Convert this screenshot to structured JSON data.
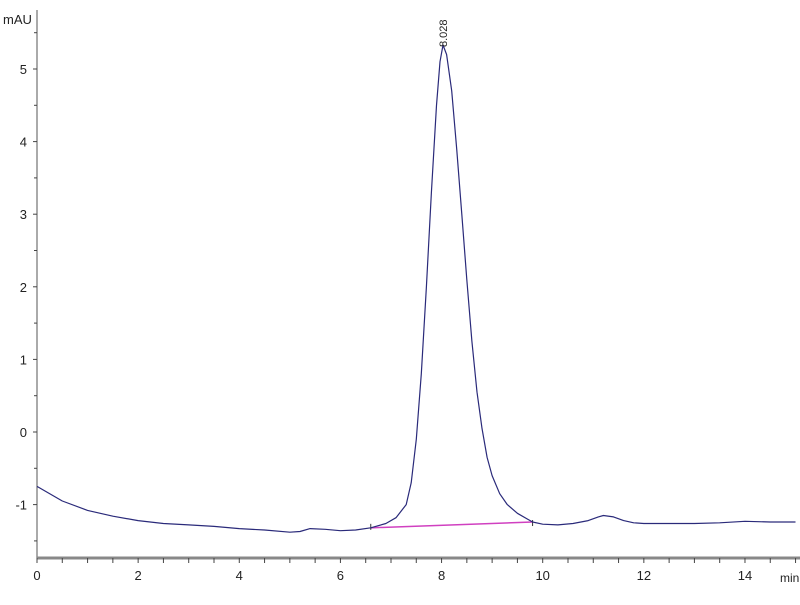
{
  "chart_data": {
    "type": "line",
    "title": "",
    "xlabel": "min",
    "ylabel": "mAU",
    "xlim": [
      0,
      15
    ],
    "ylim": [
      -1.74,
      5.8
    ],
    "x_ticks": [
      0,
      2,
      4,
      6,
      8,
      10,
      12,
      14
    ],
    "x_tick_labels": [
      "0",
      "2",
      "4",
      "6",
      "8",
      "10",
      "12",
      "14"
    ],
    "y_ticks": [
      -1,
      0,
      1,
      2,
      3,
      4,
      5
    ],
    "y_tick_labels": [
      "-1",
      "0",
      "1",
      "2",
      "3",
      "4",
      "5"
    ],
    "grid": false,
    "series": [
      {
        "color": "#2a2a7a",
        "x": [
          0,
          0.5,
          1,
          1.5,
          2,
          2.5,
          3,
          3.5,
          4,
          4.5,
          5,
          5.2,
          5.4,
          5.7,
          6,
          6.3,
          6.6,
          6.9,
          7.1,
          7.3,
          7.4,
          7.5,
          7.6,
          7.7,
          7.8,
          7.9,
          7.97,
          8.028,
          8.1,
          8.2,
          8.3,
          8.4,
          8.5,
          8.6,
          8.7,
          8.8,
          8.9,
          9.0,
          9.15,
          9.3,
          9.5,
          9.7,
          9.8,
          10.0,
          10.3,
          10.6,
          10.9,
          11.1,
          11.2,
          11.4,
          11.6,
          11.8,
          12,
          12.5,
          13,
          13.5,
          14,
          14.5,
          15
        ],
        "y": [
          -0.75,
          -0.95,
          -1.08,
          -1.16,
          -1.22,
          -1.26,
          -1.28,
          -1.3,
          -1.33,
          -1.35,
          -1.38,
          -1.37,
          -1.33,
          -1.34,
          -1.36,
          -1.35,
          -1.32,
          -1.26,
          -1.18,
          -1.0,
          -0.7,
          -0.1,
          0.8,
          2.0,
          3.3,
          4.5,
          5.1,
          5.33,
          5.2,
          4.7,
          3.9,
          3.0,
          2.1,
          1.25,
          0.55,
          0.05,
          -0.35,
          -0.6,
          -0.85,
          -1.0,
          -1.12,
          -1.2,
          -1.24,
          -1.27,
          -1.28,
          -1.26,
          -1.22,
          -1.17,
          -1.15,
          -1.17,
          -1.22,
          -1.25,
          -1.26,
          -1.26,
          -1.26,
          -1.25,
          -1.23,
          -1.24,
          -1.24
        ]
      }
    ],
    "baseline": {
      "color": "#d040c0",
      "x": [
        6.6,
        9.8
      ],
      "y": [
        -1.32,
        -1.24
      ]
    },
    "peak_labels": [
      {
        "x": 8.028,
        "y": 5.33,
        "text": "8.028"
      }
    ]
  }
}
